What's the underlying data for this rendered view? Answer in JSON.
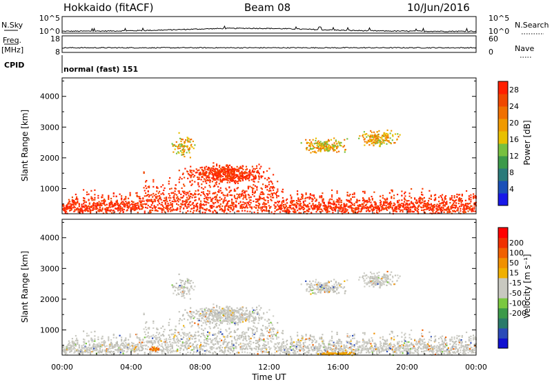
{
  "header": {
    "station": "Hokkaido (fitACF)",
    "beam": "Beam 08",
    "date": "10/Jun/2016"
  },
  "strips": {
    "nsky_label": "N.Sky",
    "nsky_ticks": [
      "10^5",
      "10^0"
    ],
    "nsearch_label": "N.Search",
    "nsearch_ticks": [
      "10^5",
      "10^0"
    ],
    "freq_label": "Freq.",
    "freq_unit": "[MHz]",
    "freq_ticks": [
      "18",
      "8"
    ],
    "nave_label": "Nave",
    "nave_ticks": [
      "60",
      "0"
    ],
    "cpid_label": "CPID",
    "cpid_text": "normal (fast) 151"
  },
  "chart_data": [
    {
      "type": "heatmap",
      "name": "power",
      "ylabel": "Slant Range [km]",
      "xlabel": "",
      "yticks": [
        "1000",
        "2000",
        "3000",
        "4000"
      ],
      "ylim": [
        180,
        4600
      ],
      "xlim_hours": [
        0,
        24
      ],
      "colorbar": {
        "label": "Power [dB]",
        "ticks": [
          "4",
          "8",
          "12",
          "16",
          "20",
          "24",
          "28"
        ],
        "range": [
          0,
          30
        ],
        "colors": [
          "#1818e8",
          "#1a50b8",
          "#2a7a7a",
          "#3c9a4a",
          "#77c040",
          "#e8c000",
          "#f09a00",
          "#f07000",
          "#f04800",
          "#ff2000"
        ]
      },
      "dominant_color": "#ff2a00"
    },
    {
      "type": "heatmap",
      "name": "velocity",
      "ylabel": "Slant Range [km]",
      "xlabel": "Time UT",
      "yticks": [
        "1000",
        "2000",
        "3000",
        "4000"
      ],
      "ylim": [
        180,
        4600
      ],
      "xticks": [
        "00:00",
        "04:00",
        "08:00",
        "12:00",
        "16:00",
        "20:00",
        "00:00"
      ],
      "colorbar": {
        "label": "Velocity [m s⁻¹]",
        "ticks": [
          "200",
          "100",
          "50",
          "15",
          "-15",
          "-50",
          "-100",
          "-200"
        ],
        "colors": [
          "#1010d0",
          "#2a4ab8",
          "#2a7a6a",
          "#3c9a4a",
          "#7ac840",
          "#c8c8c0",
          "#c8c8c0",
          "#f0b000",
          "#f09000",
          "#f06000",
          "#f03000",
          "#ff0000"
        ]
      },
      "dominant_color": "#c8c8c0"
    }
  ]
}
